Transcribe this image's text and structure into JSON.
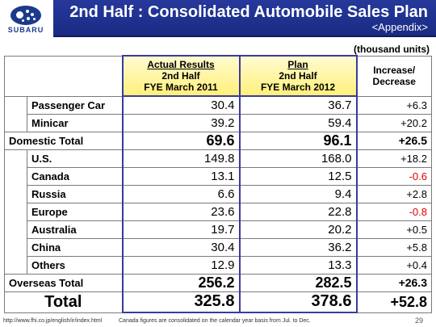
{
  "header": {
    "logo_text": "SUBARU",
    "title": "2nd Half : Consolidated Automobile Sales Plan",
    "subtitle": "<Appendix>"
  },
  "units": "(thousand units)",
  "table": {
    "columns": {
      "actual": {
        "line1": "Actual Results",
        "line2": "2nd Half",
        "line3": "FYE March 2011"
      },
      "plan": {
        "line1": "Plan",
        "line2": "2nd Half",
        "line3": "FYE March 2012"
      },
      "increase": {
        "line1": "Increase/",
        "line2": "Decrease"
      }
    },
    "domestic_rows": [
      {
        "label": "Passenger Car",
        "actual": "30.4",
        "plan": "36.7",
        "change": "+6.3",
        "negative": false
      },
      {
        "label": "Minicar",
        "actual": "39.2",
        "plan": "59.4",
        "change": "+20.2",
        "negative": false
      }
    ],
    "domestic_total": {
      "label": "Domestic Total",
      "actual": "69.6",
      "plan": "96.1",
      "change": "+26.5"
    },
    "overseas_rows": [
      {
        "label": "U.S.",
        "actual": "149.8",
        "plan": "168.0",
        "change": "+18.2",
        "negative": false
      },
      {
        "label": "Canada",
        "actual": "13.1",
        "plan": "12.5",
        "change": "-0.6",
        "negative": true
      },
      {
        "label": "Russia",
        "actual": "6.6",
        "plan": "9.4",
        "change": "+2.8",
        "negative": false
      },
      {
        "label": "Europe",
        "actual": "23.6",
        "plan": "22.8",
        "change": "-0.8",
        "negative": true
      },
      {
        "label": "Australia",
        "actual": "19.7",
        "plan": "20.2",
        "change": "+0.5",
        "negative": false
      },
      {
        "label": "China",
        "actual": "30.4",
        "plan": "36.2",
        "change": "+5.8",
        "negative": false
      },
      {
        "label": "Others",
        "actual": "12.9",
        "plan": "13.3",
        "change": "+0.4",
        "negative": false
      }
    ],
    "overseas_total": {
      "label": "Overseas Total",
      "actual": "256.2",
      "plan": "282.5",
      "change": "+26.3"
    },
    "grand_total": {
      "label": "Total",
      "actual": "325.8",
      "plan": "378.6",
      "change": "+52.8"
    }
  },
  "footer": {
    "url": "http://www.fhi.co.jp/english/ir/index.html",
    "note": "Canada figures are consolidated on the calendar year basis from Jul. to Dec.",
    "page": "29"
  },
  "colors": {
    "title_bar": "#1a2b84",
    "header_highlight": "#fff07a",
    "negative": "#e00000",
    "column_border": "#3a3aa0"
  }
}
